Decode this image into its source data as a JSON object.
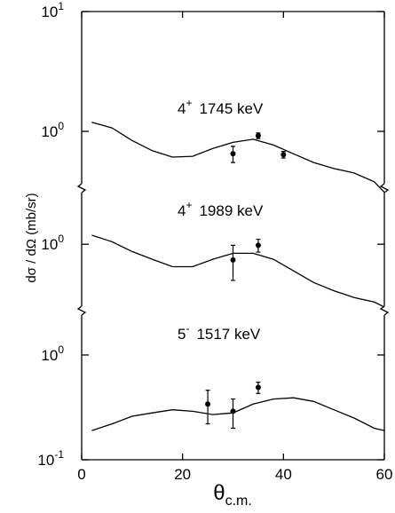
{
  "chart_data": {
    "type": "line",
    "ylabel": "dσ / dΩ (mb/sr)",
    "xlabel": {
      "text": "θ",
      "subscript": "c.m."
    },
    "xlim": [
      0,
      60
    ],
    "xticks": [
      0,
      20,
      40,
      60
    ],
    "log_y": true,
    "color": "#000000",
    "panels": [
      {
        "label": {
          "spin": "4",
          "parity": "+",
          "energy": "1745 keV"
        },
        "ylim": [
          0.336,
          10
        ],
        "yticks": [
          {
            "value": 1,
            "label": "10",
            "exponent": "0"
          },
          {
            "value": 10,
            "label": "10",
            "exponent": "1"
          }
        ],
        "curve": {
          "x": [
            2,
            6,
            10,
            14,
            18,
            22,
            26,
            30,
            34,
            38,
            42,
            46,
            50,
            54,
            58,
            60
          ],
          "values": [
            1.19,
            1.07,
            0.84,
            0.69,
            0.61,
            0.62,
            0.72,
            0.81,
            0.86,
            0.77,
            0.65,
            0.55,
            0.49,
            0.45,
            0.38,
            0.31
          ]
        },
        "points": {
          "x": [
            30,
            35,
            40
          ],
          "values": [
            0.65,
            0.92,
            0.64
          ],
          "errors": [
            0.1,
            0.05,
            0.04
          ]
        }
      },
      {
        "label": {
          "spin": "4",
          "parity": "+",
          "energy": "1989 keV"
        },
        "ylim": [
          0.28,
          2.93
        ],
        "yticks": [
          {
            "value": 1,
            "label": "10",
            "exponent": "0"
          }
        ],
        "curve": {
          "x": [
            2,
            6,
            10,
            14,
            18,
            22,
            26,
            30,
            34,
            38,
            42,
            46,
            50,
            54,
            58,
            60
          ],
          "values": [
            1.19,
            1.05,
            0.87,
            0.75,
            0.65,
            0.65,
            0.75,
            0.84,
            0.84,
            0.75,
            0.6,
            0.48,
            0.41,
            0.36,
            0.33,
            0.3
          ]
        },
        "points": {
          "x": [
            30,
            35
          ],
          "values": [
            0.74,
            0.98
          ],
          "errors": [
            0.24,
            0.12
          ]
        }
      },
      {
        "label": {
          "spin": "5",
          "parity": "-",
          "energy": "1517 keV"
        },
        "ylim": [
          0.1,
          2.65
        ],
        "yticks": [
          {
            "value": 0.1,
            "label": "10",
            "exponent": "-1"
          },
          {
            "value": 1,
            "label": "10",
            "exponent": "0"
          }
        ],
        "curve": {
          "x": [
            2,
            6,
            10,
            14,
            18,
            22,
            26,
            30,
            34,
            38,
            42,
            46,
            50,
            54,
            58,
            60
          ],
          "values": [
            0.19,
            0.22,
            0.26,
            0.28,
            0.3,
            0.29,
            0.27,
            0.28,
            0.34,
            0.38,
            0.39,
            0.36,
            0.3,
            0.25,
            0.2,
            0.19
          ]
        },
        "points": {
          "x": [
            25,
            30,
            35
          ],
          "values": [
            0.34,
            0.29,
            0.49
          ],
          "errors": [
            0.12,
            0.09,
            0.06
          ]
        }
      }
    ]
  }
}
